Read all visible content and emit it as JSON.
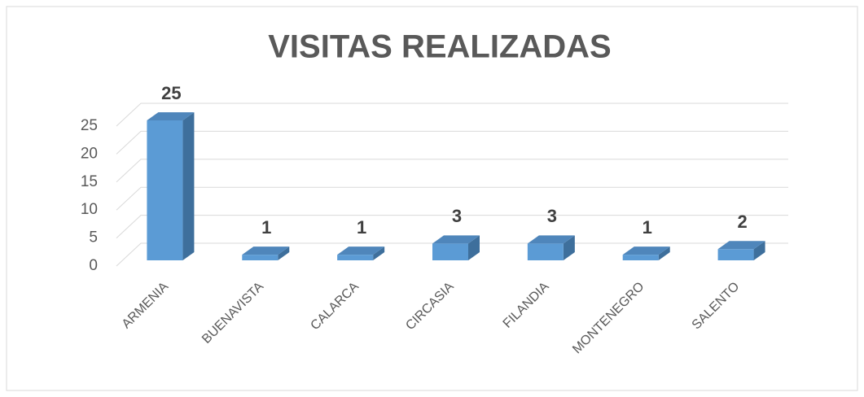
{
  "chart_data": {
    "type": "bar3d",
    "title": "VISITAS REALIZADAS",
    "categories": [
      "ARMENIA",
      "BUENAVISTA",
      "CALARCA",
      "CIRCASIA",
      "FILANDIA",
      "MONTENEGRO",
      "SALENTO"
    ],
    "values": [
      25,
      1,
      1,
      3,
      3,
      1,
      2
    ],
    "color": "#5b9bd5",
    "ylim": [
      0,
      25
    ],
    "yticks": [
      0,
      5,
      10,
      15,
      20,
      25
    ],
    "grid": true
  }
}
